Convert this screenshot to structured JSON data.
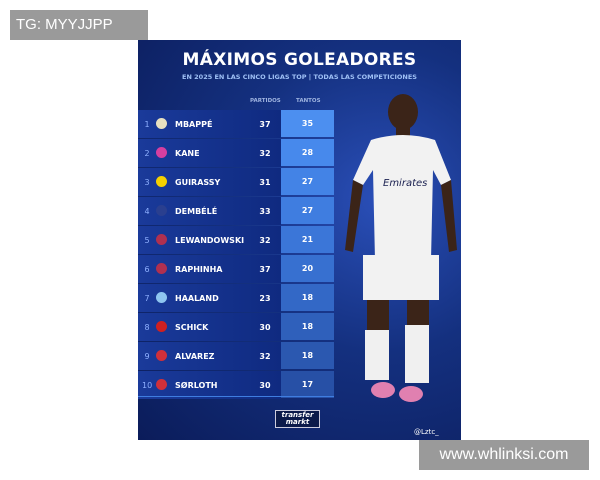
{
  "watermark_top": "TG: MYYJJPP",
  "watermark_bottom": "www.whlinksi.com",
  "poster": {
    "title": "MÁXIMOS GOLEADORES",
    "subtitle": "EN 2025 EN LAS CINCO LIGAS TOP | TODAS LAS COMPETICIONES",
    "col_partidos": "PARTIDOS",
    "col_tantos": "TANTOS",
    "logo_text_1": "transfer",
    "logo_text_2": "markt",
    "handle": "@Lztc_",
    "rows": [
      {
        "rank": "1",
        "club": "real-madrid",
        "name": "MBAPPÉ",
        "partidos": "37",
        "tantos": "35",
        "color": "#e8e0c0"
      },
      {
        "rank": "2",
        "club": "bayern",
        "name": "KANE",
        "partidos": "32",
        "tantos": "28",
        "color": "#d63fa0"
      },
      {
        "rank": "3",
        "club": "dortmund",
        "name": "GUIRASSY",
        "partidos": "31",
        "tantos": "27",
        "color": "#f5d000"
      },
      {
        "rank": "4",
        "club": "psg",
        "name": "DEMBÉLÉ",
        "partidos": "33",
        "tantos": "27",
        "color": "#2a3f8f"
      },
      {
        "rank": "5",
        "club": "barcelona",
        "name": "LEWANDOWSKI",
        "partidos": "32",
        "tantos": "21",
        "color": "#b03050"
      },
      {
        "rank": "6",
        "club": "barcelona",
        "name": "RAPHINHA",
        "partidos": "37",
        "tantos": "20",
        "color": "#b03050"
      },
      {
        "rank": "7",
        "club": "man-city",
        "name": "HAALAND",
        "partidos": "23",
        "tantos": "18",
        "color": "#8ec5f0"
      },
      {
        "rank": "8",
        "club": "leverkusen",
        "name": "SCHICK",
        "partidos": "30",
        "tantos": "18",
        "color": "#d02020"
      },
      {
        "rank": "9",
        "club": "atletico",
        "name": "ALVAREZ",
        "partidos": "32",
        "tantos": "18",
        "color": "#d0303a"
      },
      {
        "rank": "10",
        "club": "atletico",
        "name": "SØRLOTH",
        "partidos": "30",
        "tantos": "17",
        "color": "#d0303a"
      }
    ]
  }
}
